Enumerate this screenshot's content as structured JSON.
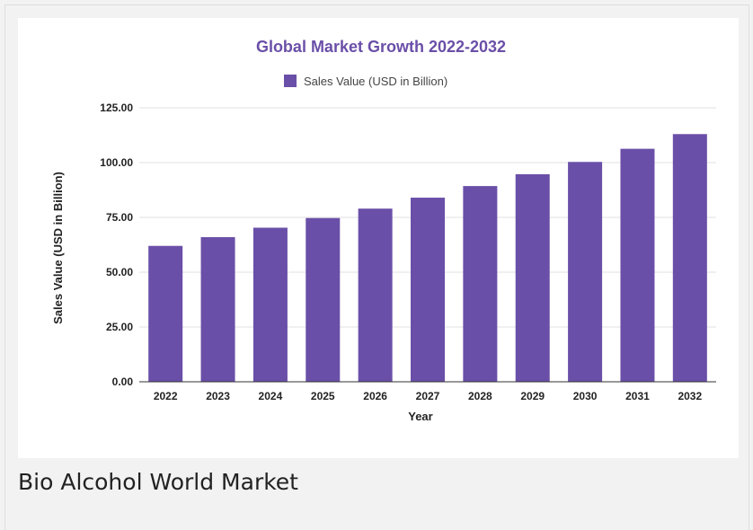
{
  "page": {
    "caption": "Bio Alcohol World Market"
  },
  "colors": {
    "bar": "#6a4fa8",
    "title": "#6a4fa8",
    "grid": "#e0e0e0",
    "background": "#f2f2f2"
  },
  "chart_data": {
    "type": "bar",
    "title": "Global Market Growth 2022-2032",
    "xlabel": "Year",
    "ylabel": "Sales Value (USD in Billion)",
    "legend": {
      "position": "top",
      "entries": [
        "Sales Value (USD in Billion)"
      ]
    },
    "categories": [
      "2022",
      "2023",
      "2024",
      "2025",
      "2026",
      "2027",
      "2028",
      "2029",
      "2030",
      "2031",
      "2032"
    ],
    "series": [
      {
        "name": "Sales Value (USD in Billion)",
        "values": [
          62.0,
          66.0,
          70.3,
          74.7,
          79.0,
          84.0,
          89.3,
          94.7,
          100.3,
          106.3,
          113.0
        ]
      }
    ],
    "yticks": [
      "0.00",
      "25.00",
      "50.00",
      "75.00",
      "100.00",
      "125.00"
    ],
    "ylim": [
      0,
      125
    ],
    "grid": true
  }
}
